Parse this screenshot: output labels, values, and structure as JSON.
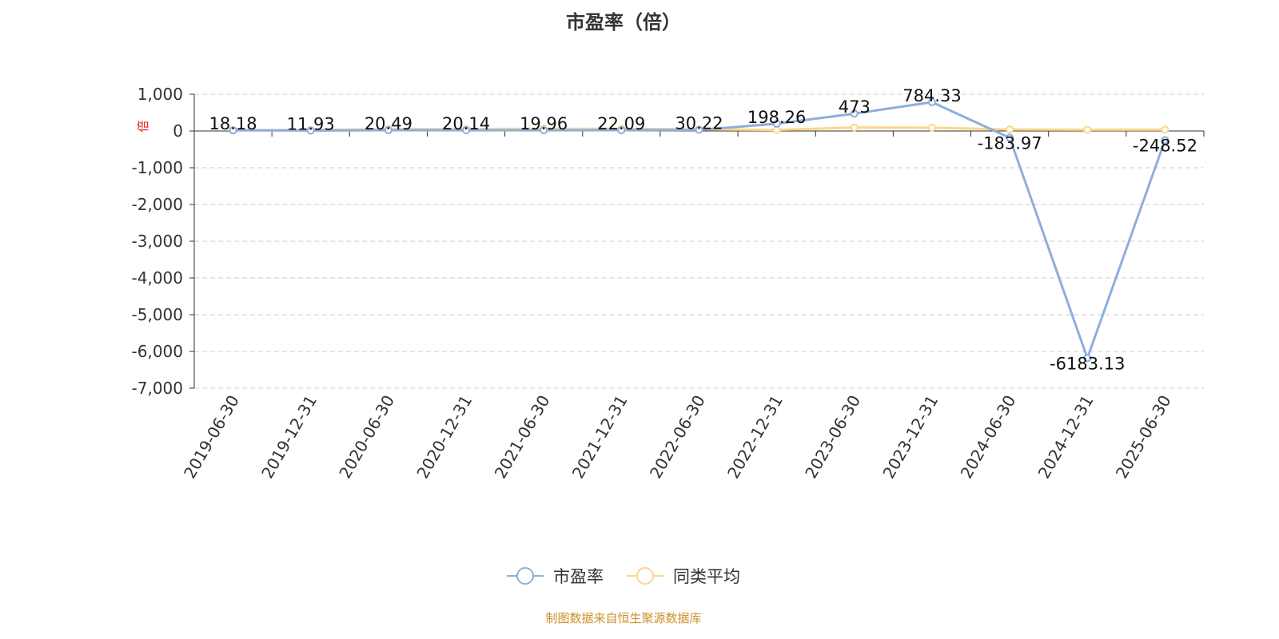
{
  "chart_data": {
    "type": "line",
    "title": "市盈率（倍）",
    "ylabel": "倍",
    "ylim": [
      -7000,
      1000
    ],
    "yticks": [
      1000,
      0,
      -1000,
      -2000,
      -3000,
      -4000,
      -5000,
      -6000,
      -7000
    ],
    "ytick_labels": [
      "1,000",
      "0",
      "-1,000",
      "-2,000",
      "-3,000",
      "-4,000",
      "-5,000",
      "-6,000",
      "-7,000"
    ],
    "grid": true,
    "legend_position": "bottom",
    "categories": [
      "2019-06-30",
      "2019-12-31",
      "2020-06-30",
      "2020-12-31",
      "2021-06-30",
      "2021-12-31",
      "2022-06-30",
      "2022-12-31",
      "2023-06-30",
      "2023-12-31",
      "2024-06-30",
      "2024-12-31",
      "2025-06-30"
    ],
    "series": [
      {
        "name": "市盈率",
        "color": "#8eaedc",
        "values": [
          18.18,
          11.93,
          20.49,
          20.14,
          19.96,
          22.09,
          30.22,
          198.26,
          473,
          784.33,
          -183.97,
          -6183.13,
          -248.52
        ],
        "labels": [
          "18.18",
          "11.93",
          "20.49",
          "20.14",
          "19.96",
          "22.09",
          "30.22",
          "198.26",
          "473",
          "784.33",
          "-183.97",
          "-6183.13",
          "-248.52"
        ]
      },
      {
        "name": "同类平均",
        "color": "#fcd68a",
        "values": [
          20,
          30,
          50,
          55,
          60,
          60,
          45,
          30,
          95,
          90,
          40,
          35,
          35
        ]
      }
    ]
  },
  "footer": "制图数据来自恒生聚源数据库"
}
